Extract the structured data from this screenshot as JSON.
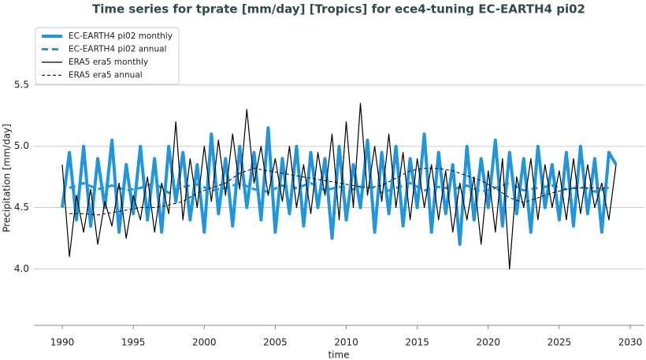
{
  "chart_data": {
    "type": "line",
    "title": "Time series for tprate [mm/day] [Tropics] for ece4-tuning EC-EARTH4 pi02",
    "x_label": "time",
    "y_label": "Precipitation [mm/day]",
    "xlim": [
      1988,
      2031
    ],
    "xticks": [
      1990,
      1995,
      2000,
      2005,
      2010,
      2015,
      2020,
      2025,
      2030
    ],
    "ylim": [
      3.54,
      6.0
    ],
    "yticks": [
      {
        "value": 4,
        "label": "4.0"
      },
      4.5,
      {
        "value": 5,
        "label": "5.0"
      },
      5.5
    ],
    "grid": true,
    "legend": "upper left",
    "series": [
      {
        "name": "EC-EARTH4 pi02 monthly",
        "color": "#2196db",
        "width": 4,
        "style": "solid",
        "x": [
          1990,
          1990.5,
          1991,
          1991.5,
          1992,
          1992.5,
          1993,
          1993.5,
          1994,
          1994.5,
          1995,
          1995.5,
          1996,
          1996.5,
          1997,
          1997.5,
          1998,
          1998.5,
          1999,
          1999.5,
          2000,
          2000.5,
          2001,
          2001.5,
          2002,
          2002.5,
          2003,
          2003.5,
          2004,
          2004.5,
          2005,
          2005.5,
          2006,
          2006.5,
          2007,
          2007.5,
          2008,
          2008.5,
          2009,
          2009.5,
          2010,
          2010.5,
          2011,
          2011.5,
          2012,
          2012.5,
          2013,
          2013.5,
          2014,
          2014.5,
          2015,
          2015.5,
          2016,
          2016.5,
          2017,
          2017.5,
          2018,
          2018.5,
          2019,
          2019.5,
          2020,
          2020.5,
          2021,
          2021.5,
          2022,
          2022.5,
          2023,
          2023.5,
          2024,
          2024.5,
          2025,
          2025.5,
          2026,
          2026.5,
          2027,
          2027.5,
          2028,
          2028.5,
          2029
        ],
        "values": [
          4.5,
          4.95,
          4.4,
          5.0,
          4.35,
          4.9,
          4.5,
          5.05,
          4.3,
          4.85,
          4.45,
          5.0,
          4.4,
          4.9,
          4.3,
          5.0,
          4.55,
          4.95,
          4.4,
          4.85,
          4.3,
          5.1,
          4.45,
          4.9,
          4.35,
          5.0,
          4.5,
          4.95,
          4.4,
          5.15,
          4.3,
          4.9,
          4.45,
          5.0,
          4.35,
          4.95,
          4.5,
          4.9,
          4.25,
          5.0,
          4.4,
          4.85,
          4.5,
          5.05,
          4.3,
          4.95,
          4.45,
          5.0,
          4.35,
          4.9,
          4.5,
          5.1,
          4.3,
          4.95,
          4.45,
          4.85,
          4.2,
          5.0,
          4.4,
          4.9,
          4.5,
          5.05,
          4.35,
          4.95,
          4.45,
          4.9,
          4.3,
          5.0,
          4.5,
          4.85,
          4.4,
          4.95,
          4.35,
          5.0,
          4.45,
          4.9,
          4.3,
          4.95,
          4.85
        ]
      },
      {
        "name": "EC-EARTH4 pi02 annual",
        "color": "#2196db",
        "width": 3,
        "style": "dashed",
        "x": [
          1990.5,
          1991.5,
          1992.5,
          1993.5,
          1994.5,
          1995.5,
          1996.5,
          1997.5,
          1998.5,
          1999.5,
          2000.5,
          2001.5,
          2002.5,
          2003.5,
          2004.5,
          2005.5,
          2006.5,
          2007.5,
          2008.5,
          2009.5,
          2010.5,
          2011.5,
          2012.5,
          2013.5,
          2014.5,
          2015.5,
          2016.5,
          2017.5,
          2018.5,
          2019.5,
          2020.5,
          2021.5,
          2022.5,
          2023.5,
          2024.5,
          2025.5,
          2026.5,
          2027.5,
          2028.5
        ],
        "values": [
          4.66,
          4.7,
          4.65,
          4.68,
          4.64,
          4.66,
          4.7,
          4.62,
          4.67,
          4.69,
          4.64,
          4.66,
          4.7,
          4.65,
          4.63,
          4.68,
          4.66,
          4.7,
          4.64,
          4.67,
          4.65,
          4.69,
          4.62,
          4.66,
          4.7,
          4.64,
          4.67,
          4.65,
          4.68,
          4.63,
          4.66,
          4.7,
          4.64,
          4.66,
          4.68,
          4.65,
          4.67,
          4.63,
          4.66
        ]
      },
      {
        "name": "ERA5 era5 monthly",
        "color": "#000000",
        "width": 1.2,
        "style": "solid",
        "x": [
          1990,
          1990.5,
          1991,
          1991.5,
          1992,
          1992.5,
          1993,
          1993.5,
          1994,
          1994.5,
          1995,
          1995.5,
          1996,
          1996.5,
          1997,
          1997.5,
          1998,
          1998.5,
          1999,
          1999.5,
          2000,
          2000.5,
          2001,
          2001.5,
          2002,
          2002.5,
          2003,
          2003.5,
          2004,
          2004.5,
          2005,
          2005.5,
          2006,
          2006.5,
          2007,
          2007.5,
          2008,
          2008.5,
          2009,
          2009.5,
          2010,
          2010.5,
          2011,
          2011.5,
          2012,
          2012.5,
          2013,
          2013.5,
          2014,
          2014.5,
          2015,
          2015.5,
          2016,
          2016.5,
          2017,
          2017.5,
          2018,
          2018.5,
          2019,
          2019.5,
          2020,
          2020.5,
          2021,
          2021.5,
          2022,
          2022.5,
          2023,
          2023.5,
          2024,
          2024.5,
          2025,
          2025.5,
          2026,
          2026.5,
          2027,
          2027.5,
          2028,
          2028.5,
          2029
        ],
        "values": [
          4.85,
          4.1,
          4.6,
          4.3,
          4.65,
          4.2,
          4.55,
          4.35,
          4.7,
          4.25,
          4.6,
          4.4,
          4.75,
          4.3,
          4.7,
          4.45,
          5.2,
          4.4,
          4.9,
          4.5,
          5.0,
          4.55,
          5.05,
          4.6,
          5.1,
          4.65,
          5.3,
          4.7,
          5.0,
          4.6,
          4.9,
          4.55,
          5.0,
          4.5,
          4.85,
          4.45,
          4.95,
          4.6,
          5.1,
          4.4,
          5.2,
          4.5,
          5.35,
          4.6,
          5.0,
          4.55,
          5.1,
          4.5,
          4.95,
          4.4,
          4.9,
          4.5,
          4.85,
          4.4,
          4.8,
          4.3,
          4.7,
          4.4,
          4.75,
          4.2,
          4.8,
          4.3,
          4.9,
          4.0,
          4.75,
          4.5,
          4.9,
          4.4,
          4.85,
          4.5,
          4.8,
          4.4,
          4.9,
          4.45,
          4.85,
          4.5,
          4.7,
          4.4,
          4.85
        ]
      },
      {
        "name": "ERA5 era5 annual",
        "color": "#000000",
        "width": 1,
        "style": "dashed",
        "x": [
          1990.5,
          1991.5,
          1992.5,
          1993.5,
          1994.5,
          1995.5,
          1996.5,
          1997.5,
          1998.5,
          1999.5,
          2000.5,
          2001.5,
          2002.5,
          2003.5,
          2004.5,
          2005.5,
          2006.5,
          2007.5,
          2008.5,
          2009.5,
          2010.5,
          2011.5,
          2012.5,
          2013.5,
          2014.5,
          2015.5,
          2016.5,
          2017.5,
          2018.5,
          2019.5,
          2020.5,
          2021.5,
          2022.5,
          2023.5,
          2024.5,
          2025.5,
          2026.5,
          2027.5,
          2028.5
        ],
        "values": [
          4.45,
          4.45,
          4.44,
          4.46,
          4.48,
          4.5,
          4.5,
          4.52,
          4.55,
          4.62,
          4.66,
          4.7,
          4.78,
          4.82,
          4.8,
          4.78,
          4.76,
          4.74,
          4.72,
          4.7,
          4.68,
          4.66,
          4.68,
          4.74,
          4.8,
          4.82,
          4.82,
          4.8,
          4.76,
          4.72,
          4.66,
          4.58,
          4.54,
          4.58,
          4.62,
          4.65,
          4.66,
          4.66,
          4.66
        ]
      }
    ]
  }
}
